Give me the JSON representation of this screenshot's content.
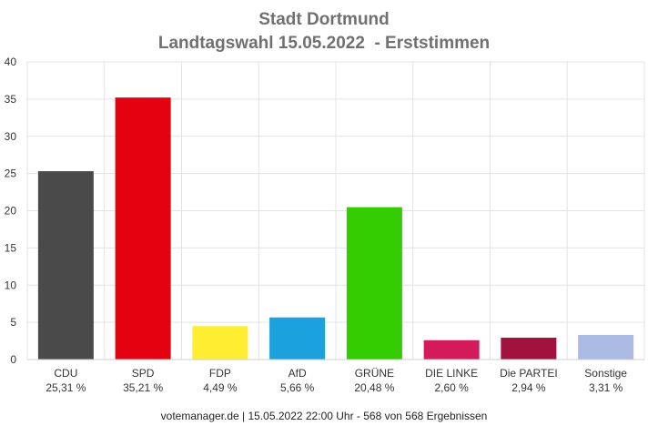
{
  "chart_data": {
    "type": "bar",
    "title": "Stadt Dortmund",
    "subtitle": "Landtagswahl 15.05.2022  - Erststimmen",
    "categories": [
      "CDU",
      "SPD",
      "FDP",
      "AfD",
      "GRÜNE",
      "DIE LINKE",
      "Die PARTEI",
      "Sonstige"
    ],
    "values": [
      25.31,
      35.21,
      4.49,
      5.66,
      20.48,
      2.6,
      2.94,
      3.31
    ],
    "value_labels": [
      "25,31 %",
      "35,21 %",
      "4,49 %",
      "5,66 %",
      "20,48 %",
      "2,60 %",
      "2,94 %",
      "3,31 %"
    ],
    "colors": [
      "#4a4a4a",
      "#e3000f",
      "#ffed32",
      "#1ba1dd",
      "#33cc00",
      "#d31a5a",
      "#a0123d",
      "#abbbe3"
    ],
    "ylim": [
      0,
      40
    ],
    "yticks": [
      0,
      5,
      10,
      15,
      20,
      25,
      30,
      35,
      40
    ],
    "grid": true,
    "legend": "none"
  },
  "footer": "votemanager.de | 15.05.2022 22:00 Uhr - 568 von 568 Ergebnissen"
}
